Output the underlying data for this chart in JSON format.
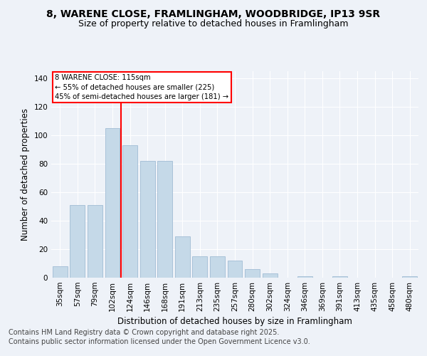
{
  "title1": "8, WARENE CLOSE, FRAMLINGHAM, WOODBRIDGE, IP13 9SR",
  "title2": "Size of property relative to detached houses in Framlingham",
  "xlabel": "Distribution of detached houses by size in Framlingham",
  "ylabel": "Number of detached properties",
  "categories": [
    "35sqm",
    "57sqm",
    "79sqm",
    "102sqm",
    "124sqm",
    "146sqm",
    "168sqm",
    "191sqm",
    "213sqm",
    "235sqm",
    "257sqm",
    "280sqm",
    "302sqm",
    "324sqm",
    "346sqm",
    "369sqm",
    "391sqm",
    "413sqm",
    "435sqm",
    "458sqm",
    "480sqm"
  ],
  "values": [
    8,
    51,
    51,
    105,
    93,
    82,
    82,
    29,
    15,
    15,
    12,
    6,
    3,
    0,
    1,
    0,
    1,
    0,
    0,
    0,
    1
  ],
  "bar_color": "#c5d9e8",
  "bar_edgecolor": "#a0bcd4",
  "vline_color": "red",
  "annotation_title": "8 WARENE CLOSE: 115sqm",
  "annotation_line1": "← 55% of detached houses are smaller (225)",
  "annotation_line2": "45% of semi-detached houses are larger (181) →",
  "ylim": [
    0,
    145
  ],
  "yticks": [
    0,
    20,
    40,
    60,
    80,
    100,
    120,
    140
  ],
  "footer1": "Contains HM Land Registry data © Crown copyright and database right 2025.",
  "footer2": "Contains public sector information licensed under the Open Government Licence v3.0.",
  "bg_color": "#eef2f8",
  "title_fontsize": 10,
  "subtitle_fontsize": 9,
  "axis_label_fontsize": 8.5,
  "tick_fontsize": 7.5,
  "footer_fontsize": 7
}
